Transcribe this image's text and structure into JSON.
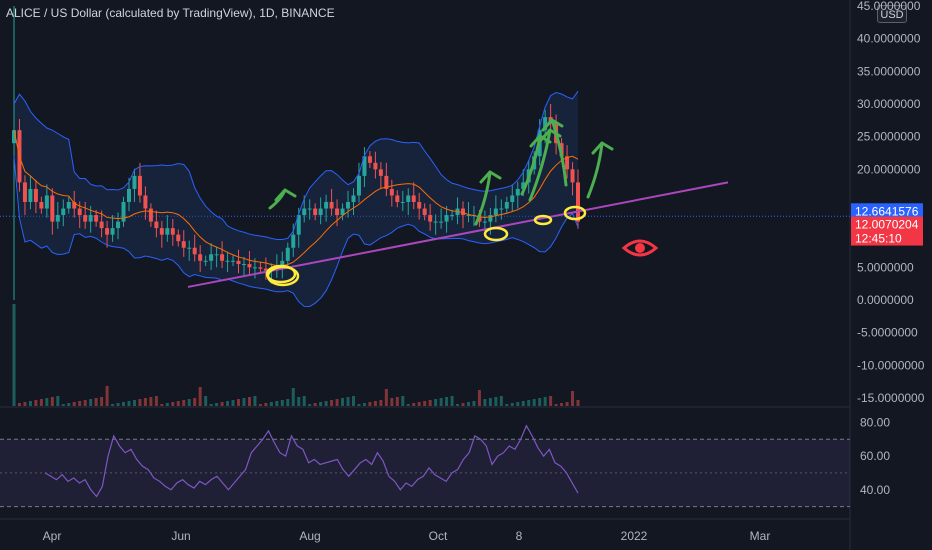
{
  "header": {
    "symbol_title": "ALICE / US Dollar (calculated by TradingView), 1D, BINANCE",
    "currency_button": "USD"
  },
  "colors": {
    "background": "#131722",
    "bollinger_band": "#2962ff",
    "bollinger_fill": "#1f3a6b",
    "basis": "#ff6d00",
    "trendline": "#ab47bc",
    "arrows": "#4caf50",
    "highlight": "#ffeb3b",
    "rsi_line": "#7e57c2",
    "up": "#26a69a",
    "down": "#ef5350",
    "price_line": "#2962ff",
    "eye_icon": "#f23645"
  },
  "icons": [
    "eye-icon",
    "up-arrow-annotation",
    "circle-annotation"
  ],
  "chart_data": [
    {
      "type": "candlestick",
      "indicators": [
        "bollinger-bands",
        "volume"
      ],
      "x_ticks": [
        "Apr",
        "Jun",
        "Aug",
        "Oct",
        "8",
        "2022",
        "Mar"
      ],
      "y_ticks": [
        "45.0000000",
        "40.0000000",
        "35.0000000",
        "30.0000000",
        "25.0000000",
        "20.0000000",
        "5.0000000",
        "0.0000000",
        "-5.0000000",
        "-10.0000000",
        "-15.0000000"
      ],
      "ylim": [
        -15,
        45
      ],
      "price_labels": [
        {
          "value": "12.6641576",
          "color": "#2962ff"
        },
        {
          "value": "12.0070204",
          "color": "#f23645"
        },
        {
          "value": "12:45:10",
          "color": "#f23645"
        }
      ],
      "last_price": 12.0070204,
      "reference_price": 12.6641576,
      "close_series": [
        26,
        18,
        15,
        17,
        15,
        14,
        16,
        12,
        13,
        14,
        15,
        14,
        13,
        12,
        13,
        12,
        11,
        10,
        11,
        12,
        15,
        17,
        19,
        16,
        14,
        12,
        11,
        10,
        11,
        10,
        9,
        8,
        8,
        7,
        6,
        6,
        7,
        7,
        6,
        6,
        6,
        5.5,
        5.5,
        5,
        5,
        4.8,
        4.5,
        4.5,
        5,
        6,
        8,
        10,
        13,
        14,
        14,
        13,
        14,
        15,
        14,
        13,
        14,
        15,
        16,
        19,
        22,
        21,
        20,
        19,
        17,
        16,
        15,
        15,
        16,
        15,
        14,
        13,
        12,
        12,
        12,
        13,
        13,
        14,
        13,
        13,
        13,
        12,
        12,
        13,
        14,
        14,
        15,
        16,
        17,
        18,
        20,
        22,
        26,
        28,
        27,
        24,
        22,
        20,
        18,
        12
      ],
      "annotations": {
        "trendline": {
          "from": [
            0,
            2.0
          ],
          "to": [
            130,
            18.0
          ]
        },
        "up_arrows": 6,
        "circled_touches": 5
      }
    },
    {
      "type": "line",
      "name": "RSI",
      "y_ticks": [
        "80.00",
        "60.00",
        "40.00"
      ],
      "ylim": [
        25,
        85
      ],
      "band": [
        30,
        70
      ],
      "values": [
        50,
        48,
        46,
        49,
        45,
        47,
        44,
        46,
        40,
        36,
        42,
        60,
        72,
        66,
        62,
        64,
        58,
        54,
        52,
        47,
        45,
        42,
        40,
        44,
        46,
        43,
        41,
        45,
        43,
        46,
        48,
        44,
        40,
        44,
        48,
        52,
        62,
        66,
        70,
        75,
        68,
        62,
        60,
        72,
        66,
        64,
        56,
        58,
        55,
        56,
        57,
        58,
        52,
        48,
        52,
        56,
        58,
        55,
        62,
        57,
        48,
        45,
        40,
        44,
        42,
        46,
        48,
        53,
        49,
        47,
        45,
        50,
        52,
        58,
        62,
        72,
        70,
        66,
        55,
        60,
        62,
        66,
        64,
        70,
        78,
        72,
        65,
        60,
        64,
        56,
        54,
        50,
        44,
        38
      ]
    }
  ]
}
